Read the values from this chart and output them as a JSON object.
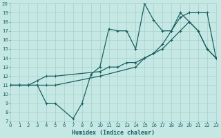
{
  "xlabel": "Humidex (Indice chaleur)",
  "bg_color": "#c5e8e5",
  "grid_color": "#a8d0cc",
  "line_color": "#1a6060",
  "xmin": 0,
  "xmax": 23,
  "ymin": 7,
  "ymax": 20,
  "line1_x": [
    0,
    1,
    2,
    3,
    4,
    5,
    7,
    8,
    9,
    10,
    11,
    12,
    13,
    14,
    15,
    16,
    17,
    18,
    19,
    20,
    21,
    22,
    23
  ],
  "line1_y": [
    11,
    11,
    11,
    11,
    9,
    9,
    7.3,
    9,
    12.2,
    13,
    17.2,
    17,
    17,
    15,
    20,
    18.2,
    17,
    17,
    19,
    18,
    17,
    15,
    14
  ],
  "line2_x": [
    0,
    1,
    2,
    3,
    4,
    5,
    10,
    11,
    12,
    13,
    14,
    15,
    16,
    17,
    18,
    19,
    20,
    21,
    22,
    23
  ],
  "line2_y": [
    11,
    11,
    11,
    11.5,
    12,
    12,
    12.5,
    13,
    13,
    13.5,
    13.5,
    14,
    14.5,
    15,
    16,
    17,
    18,
    17,
    15,
    14
  ],
  "line3_x": [
    0,
    1,
    2,
    3,
    4,
    5,
    10,
    14,
    15,
    16,
    17,
    18,
    19,
    20,
    21,
    22,
    23
  ],
  "line3_y": [
    11,
    11,
    11,
    11,
    11,
    11,
    12,
    13,
    14,
    14.5,
    15.5,
    17,
    18.5,
    19,
    19,
    19,
    14
  ]
}
